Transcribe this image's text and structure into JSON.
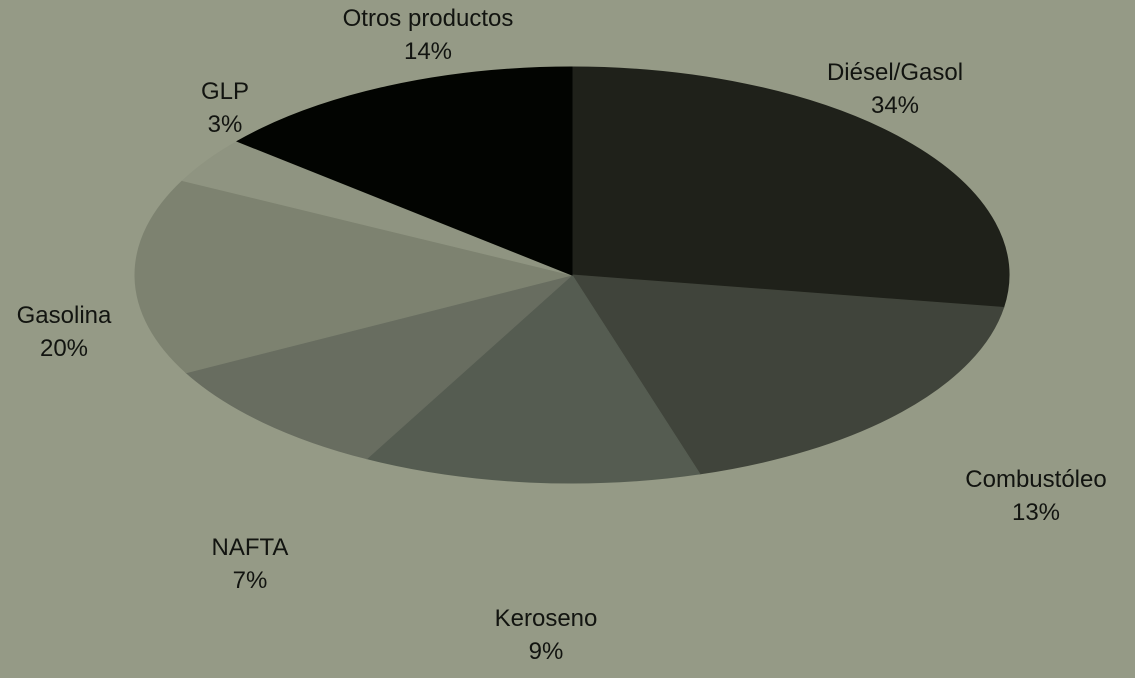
{
  "chart_data": {
    "type": "pie",
    "title": "",
    "slices": [
      {
        "label": "Diésel/Gasol",
        "value": 34,
        "value_label": "34%",
        "color": "#1f211a"
      },
      {
        "label": "Combustóleo",
        "value": 13,
        "value_label": "13%",
        "color": "#40443b"
      },
      {
        "label": "Keroseno",
        "value": 9,
        "value_label": "9%",
        "color": "#555c51"
      },
      {
        "label": "NAFTA",
        "value": 7,
        "value_label": "7%",
        "color": "#686d60"
      },
      {
        "label": "Gasolina",
        "value": 20,
        "value_label": "20%",
        "color": "#7d8270"
      },
      {
        "label": "GLP",
        "value": 3,
        "value_label": "3%",
        "color": "#8f9481"
      },
      {
        "label": "Otros productos",
        "value": 14,
        "value_label": "14%",
        "color": "#020401"
      }
    ],
    "legend": "none"
  },
  "colors": {
    "background": "#959a86",
    "label_text": "#121410"
  }
}
